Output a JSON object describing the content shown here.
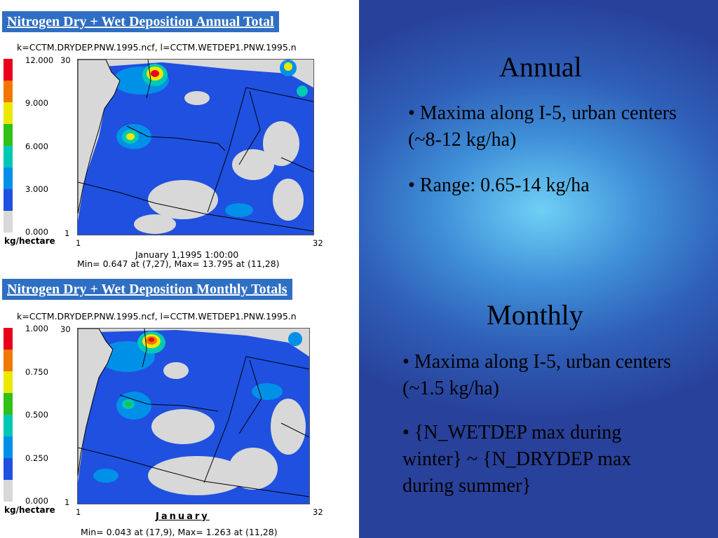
{
  "annual_panel": {
    "banner": "Nitrogen Dry + Wet Deposition Annual Total",
    "file_title": "k=CCTM.DRYDEP.PNW.1995.ncf, l=CCTM.WETDEP1.PNW.1995.n",
    "legend_labels": [
      "12.000",
      "9.000",
      "6.000",
      "3.000",
      "0.000"
    ],
    "unit": "kg/hectare",
    "y_top": "30",
    "y_bottom": "1",
    "x_left": "1",
    "x_right": "32",
    "date": "January 1,1995 1:00:00",
    "minmax": "Min=   0.647 at (7,27), Max=  13.795 at (11,28)"
  },
  "monthly_panel": {
    "banner": "Nitrogen Dry + Wet Deposition Monthly Totals",
    "file_title": "k=CCTM.DRYDEP.PNW.1995.ncf, l=CCTM.WETDEP1.PNW.1995.n",
    "legend_labels": [
      "1.000",
      "0.750",
      "0.500",
      "0.250",
      "0.000"
    ],
    "unit": "kg/hectare",
    "y_top": "30",
    "y_bottom": "1",
    "x_left": "1",
    "x_right": "32",
    "month": "January",
    "minmax": "Min=   0.043 at (17,9), Max=   1.263 at (11,28)"
  },
  "annual_text": {
    "heading": "Annual",
    "bullets": [
      "• Maxima along I-5, urban centers (~8-12 kg/ha)",
      "• Range: 0.65-14 kg/ha"
    ]
  },
  "monthly_text": {
    "heading": "Monthly",
    "bullets": [
      "• Maxima along I-5, urban centers (~1.5 kg/ha)",
      "• {N_WETDEP max during winter} ~ {N_DRYDEP max during summer}"
    ]
  },
  "colors": {
    "legend_scale": [
      "#e8001c",
      "#f07800",
      "#ece800",
      "#30c018",
      "#00c8b4",
      "#0090e8",
      "#1f50e0",
      "#d8d8d8"
    ],
    "banner": "#2f6fc3"
  }
}
